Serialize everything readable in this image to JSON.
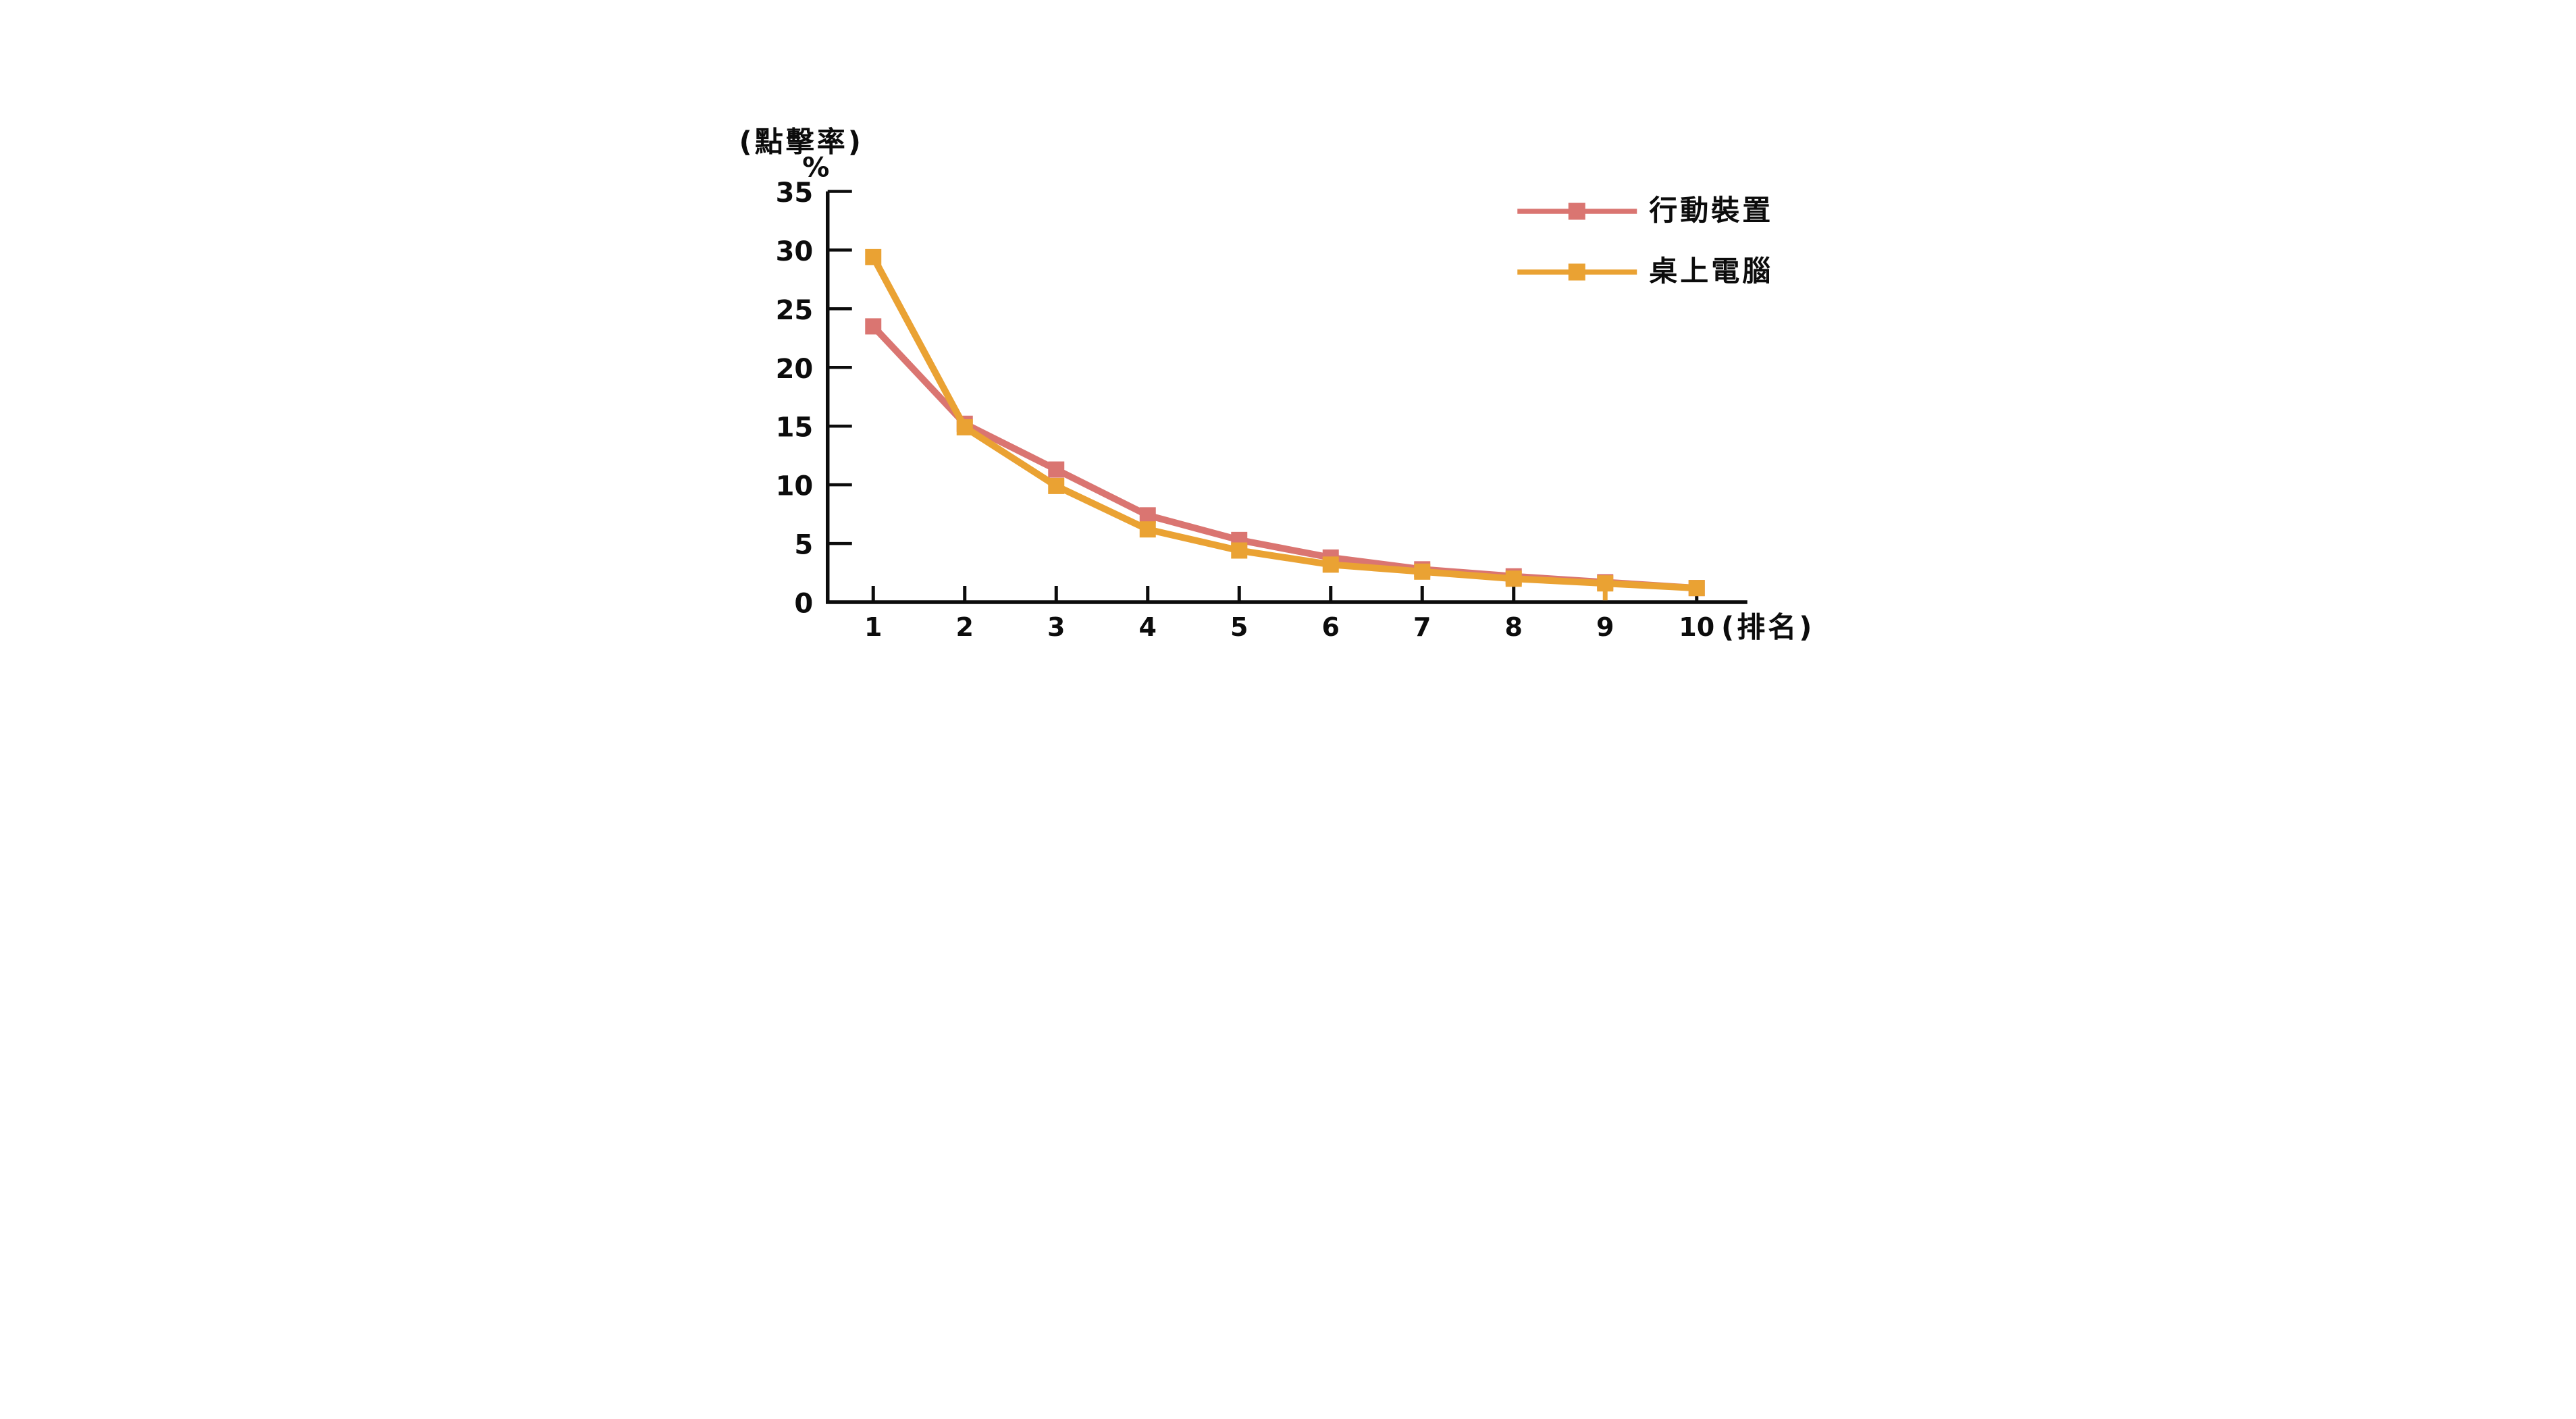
{
  "page": {
    "background": "#ffffff"
  },
  "chart_data": {
    "type": "line",
    "title": "",
    "y_axis_title": "(點擊率)",
    "y_axis_unit": "%",
    "x_axis_title": "(排名)",
    "x": [
      1,
      2,
      3,
      4,
      5,
      6,
      7,
      8,
      9,
      10
    ],
    "x_tick_labels": [
      "1",
      "2",
      "3",
      "4",
      "5",
      "6",
      "7",
      "8",
      "9",
      "10"
    ],
    "y_ticks": [
      0,
      5,
      10,
      15,
      20,
      25,
      30,
      35
    ],
    "y_tick_labels": [
      "0",
      "5",
      "10",
      "15",
      "20",
      "25",
      "30",
      "35"
    ],
    "ylim": [
      0,
      35
    ],
    "grid": false,
    "legend_position": "top-right",
    "axis_color": "#0c0c0c",
    "series": [
      {
        "name": "行動裝置",
        "device": "mobile",
        "color": "#DA7571",
        "marker": "square",
        "values": [
          23.5,
          15.2,
          11.3,
          7.4,
          5.3,
          3.8,
          2.8,
          2.2,
          1.7,
          1.2
        ]
      },
      {
        "name": "桌上電腦",
        "device": "desktop",
        "color": "#EAA233",
        "marker": "square",
        "values": [
          29.4,
          14.9,
          9.9,
          6.2,
          4.4,
          3.2,
          2.6,
          2.0,
          1.6,
          1.2
        ]
      }
    ],
    "x_tick_color_overrides": {
      "9": "#EAA233"
    }
  }
}
